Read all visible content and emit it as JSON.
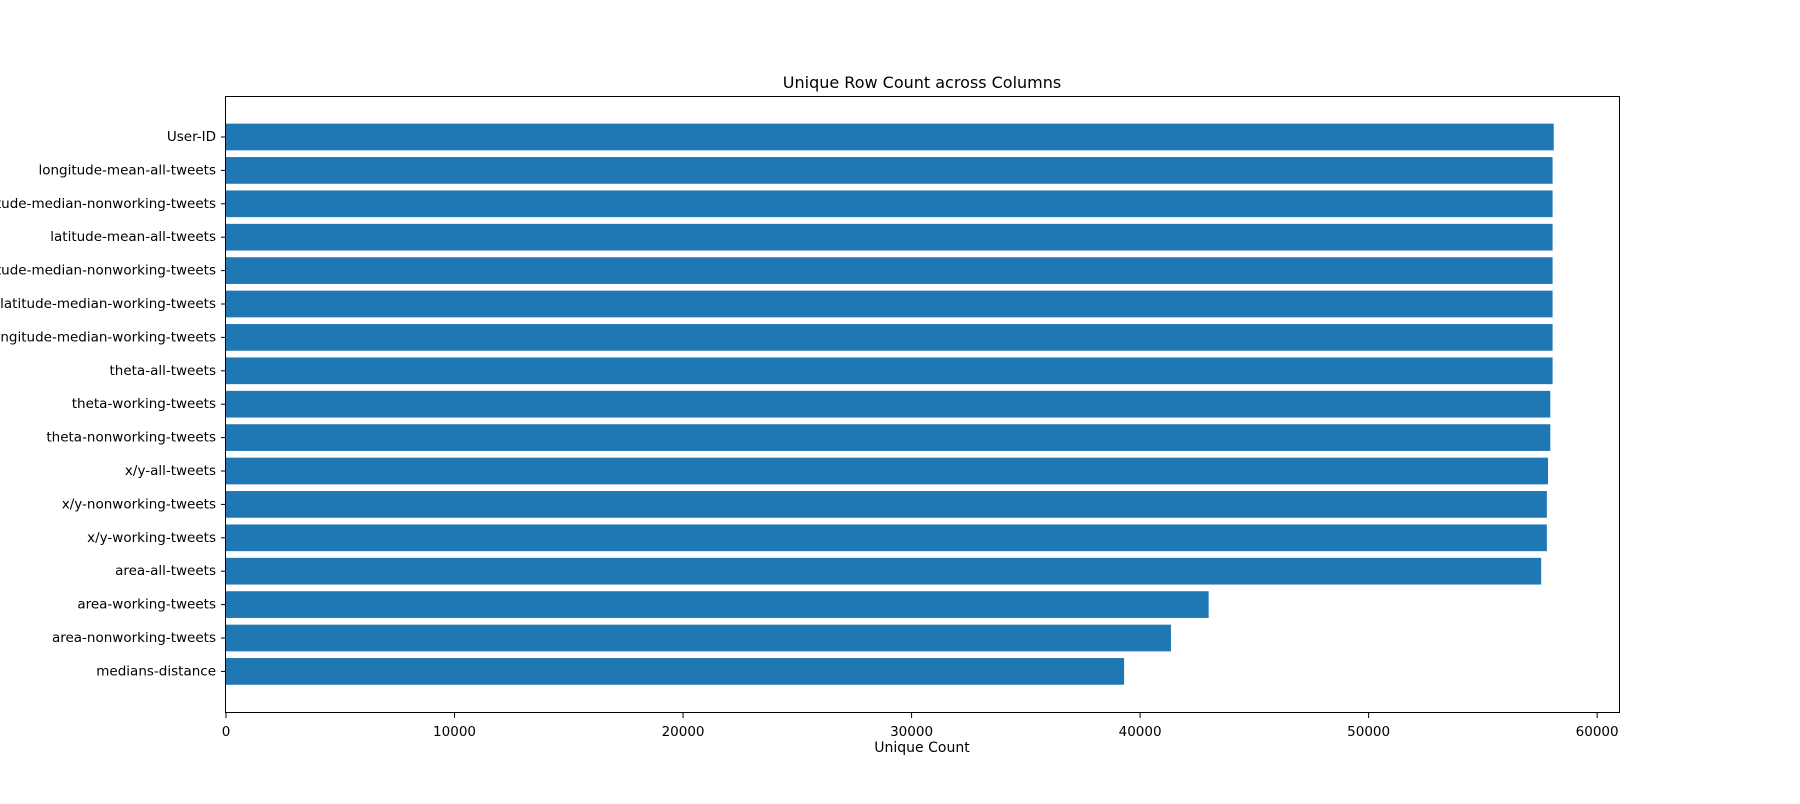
{
  "chart_data": {
    "type": "bar",
    "orientation": "horizontal",
    "title": "Unique Row Count across Columns",
    "xlabel": "Unique Count",
    "ylabel": "",
    "xlim": [
      0,
      61000
    ],
    "xticks": [
      0,
      10000,
      20000,
      30000,
      40000,
      50000,
      60000
    ],
    "grid": false,
    "bar_color": "#1f77b4",
    "categories": [
      "User-ID",
      "longitude-mean-all-tweets",
      "longitude-median-nonworking-tweets",
      "latitude-mean-all-tweets",
      "latitude-median-nonworking-tweets",
      "latitude-median-working-tweets",
      "longitude-median-working-tweets",
      "theta-all-tweets",
      "theta-working-tweets",
      "theta-nonworking-tweets",
      "x/y-all-tweets",
      "x/y-nonworking-tweets",
      "x/y-working-tweets",
      "area-all-tweets",
      "area-working-tweets",
      "area-nonworking-tweets",
      "medians-distance"
    ],
    "values": [
      58100,
      58050,
      58050,
      58050,
      58050,
      58050,
      58050,
      58050,
      57950,
      57950,
      57850,
      57800,
      57800,
      57550,
      43000,
      41350,
      39300
    ]
  }
}
